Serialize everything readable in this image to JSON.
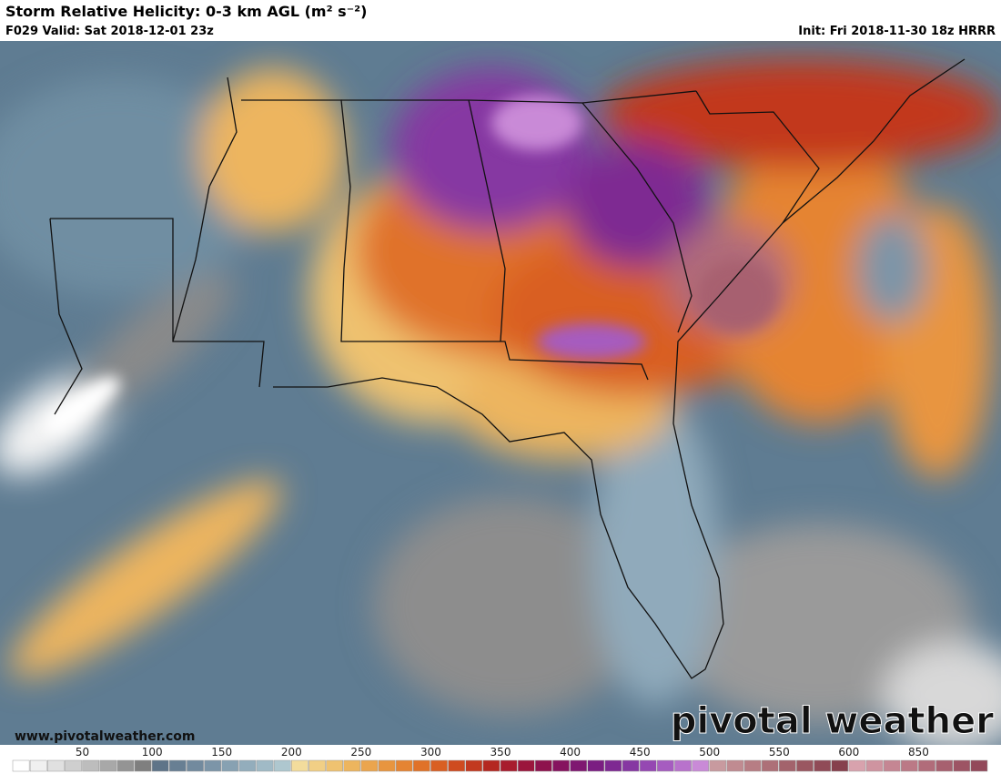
{
  "header": {
    "title": "Storm Relative Helicity: 0-3 km AGL (m² s⁻²)",
    "valid": "F029 Valid: Sat 2018-12-01 23z",
    "init": "Init: Fri 2018-11-30 18z HRRR"
  },
  "footer": {
    "url": "www.pivotalweather.com",
    "logo": "pivotal weather"
  },
  "colorbar": {
    "labels": [
      "50",
      "100",
      "150",
      "200",
      "250",
      "300",
      "350",
      "400",
      "450",
      "500",
      "550",
      "600",
      "850"
    ],
    "colors": [
      "#ffffff",
      "#f0f0f0",
      "#e0e0e0",
      "#cfcfcf",
      "#bdbdbd",
      "#a8a8a8",
      "#949494",
      "#7f7f7f",
      "#5f7488",
      "#687f93",
      "#728a9e",
      "#7c95a8",
      "#87a1b2",
      "#93adbc",
      "#a0bac6",
      "#aec7cf",
      "#f3dc9c",
      "#f1cf85",
      "#efc270",
      "#edb55e",
      "#eba54e",
      "#e8953f",
      "#e58433",
      "#e07229",
      "#d95f22",
      "#cf4b1f",
      "#c2391f",
      "#b42820",
      "#a81c2d",
      "#9b153c",
      "#8e124d",
      "#86135f",
      "#7f1871",
      "#7b1e82",
      "#7e2992",
      "#8637a2",
      "#9548b2",
      "#a65cc0",
      "#b872cc",
      "#c98ad7",
      "#c89a9f",
      "#c08b91",
      "#b77d84",
      "#ad7078",
      "#a3636c",
      "#9a5761",
      "#904b57",
      "#86404d",
      "#d8a2ad",
      "#cf94a0",
      "#c58693",
      "#bb7986",
      "#b16c7a",
      "#a7606f",
      "#9d5464",
      "#93495a"
    ]
  }
}
